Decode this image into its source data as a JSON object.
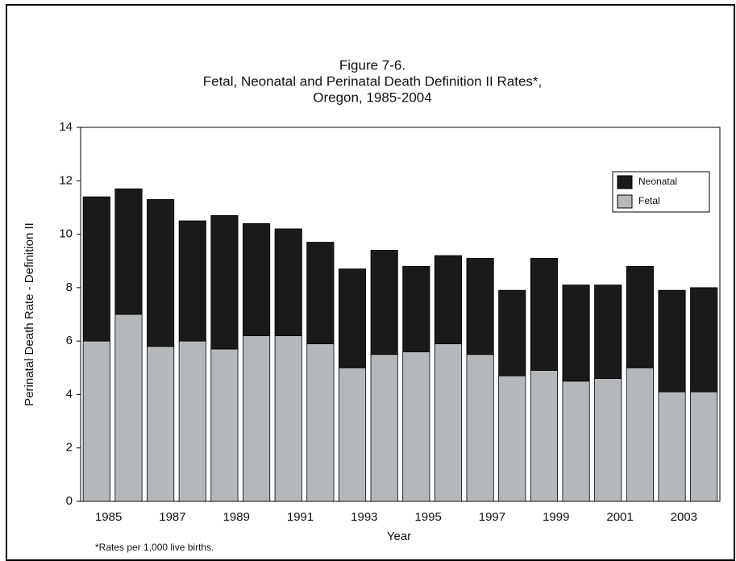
{
  "chart_data": {
    "type": "stacked_bar",
    "title_lines": [
      "Figure 7-6.",
      "Fetal, Neonatal and Perinatal Death Definition II Rates*,",
      "Oregon, 1985-2004"
    ],
    "x_label": "Year",
    "y_label": "Perinatal Death Rate - Definition II",
    "note": "*Rates per 1,000 live births.",
    "categories": [
      "1985",
      null,
      "1987",
      null,
      "1989",
      null,
      "1991",
      null,
      "1993",
      null,
      "1995",
      null,
      "1997",
      null,
      "1999",
      null,
      "2001",
      null,
      "2003",
      null
    ],
    "series": [
      {
        "name": "Fetal",
        "color": "#b4b8bb",
        "values": [
          6.0,
          7.0,
          5.8,
          6.0,
          5.7,
          6.2,
          6.2,
          5.9,
          5.0,
          5.5,
          5.6,
          5.9,
          5.5,
          4.7,
          4.9,
          4.5,
          4.6,
          5.0,
          4.1,
          4.1
        ]
      },
      {
        "name": "Neonatal",
        "color": "#1a1a1a",
        "values": [
          5.4,
          4.7,
          5.5,
          4.5,
          5.0,
          4.2,
          4.0,
          3.8,
          3.7,
          3.9,
          3.2,
          3.3,
          3.6,
          3.2,
          4.2,
          3.6,
          3.5,
          3.8,
          3.8,
          3.9
        ]
      }
    ],
    "ylim": [
      0,
      14
    ],
    "yticks": [
      0,
      2,
      4,
      6,
      8,
      10,
      12,
      14
    ],
    "grid": false,
    "legend": "upper right"
  }
}
